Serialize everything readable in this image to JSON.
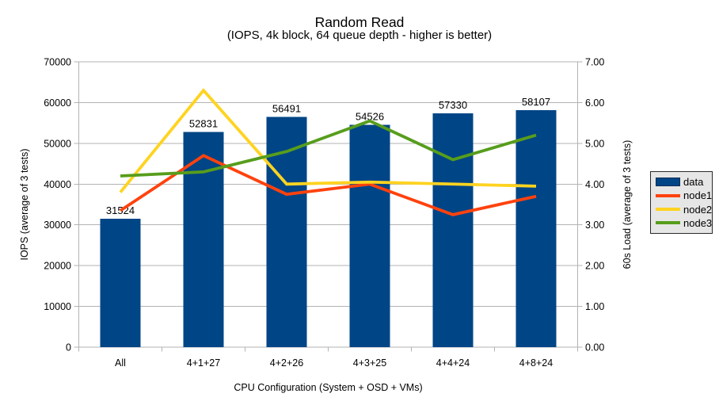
{
  "chart_data": {
    "type": "combo-bar-line",
    "title": "Random Read",
    "subtitle": "(IOPS, 4k block, 64 queue depth - higher is better)",
    "xlabel": "CPU Configuration (System + OSD + VMs)",
    "ylabel_left": "IOPS (average of 3 tests)",
    "ylabel_right": "60s Load (average of 3 tests)",
    "categories": [
      "All",
      "4+1+27",
      "4+2+26",
      "4+3+25",
      "4+4+24",
      "4+8+24"
    ],
    "series": [
      {
        "name": "data",
        "type": "bar",
        "axis": "left",
        "color": "#004586",
        "values": [
          31524,
          52831,
          56491,
          54526,
          57330,
          58107
        ],
        "labels": [
          "31524",
          "52831",
          "56491",
          "54526",
          "57330",
          "58107"
        ]
      },
      {
        "name": "node1",
        "type": "line",
        "axis": "right",
        "color": "#FF420E",
        "values": [
          3.35,
          4.7,
          3.75,
          4.0,
          3.25,
          3.7
        ]
      },
      {
        "name": "node2",
        "type": "line",
        "axis": "right",
        "color": "#FFD320",
        "values": [
          3.8,
          6.3,
          4.0,
          4.05,
          4.0,
          3.95
        ]
      },
      {
        "name": "node3",
        "type": "line",
        "axis": "right",
        "color": "#579D1C",
        "values": [
          4.2,
          4.3,
          4.8,
          5.55,
          4.6,
          5.2
        ]
      }
    ],
    "ylim_left": [
      0,
      70000
    ],
    "ylim_right": [
      0,
      7
    ],
    "left_tick_labels": [
      "0",
      "10000",
      "20000",
      "30000",
      "40000",
      "50000",
      "60000",
      "70000"
    ],
    "right_tick_labels": [
      "0.00",
      "1.00",
      "2.00",
      "3.00",
      "4.00",
      "5.00",
      "6.00",
      "7.00"
    ],
    "grid": true,
    "legend_position": "right"
  },
  "colors": {
    "background": "#ffffff",
    "grid": "#b3b3b3",
    "axis": "#b3b3b3",
    "text": "#000000",
    "legend_background": "#e6e6e6",
    "legend_border": "#2b2b2b"
  }
}
